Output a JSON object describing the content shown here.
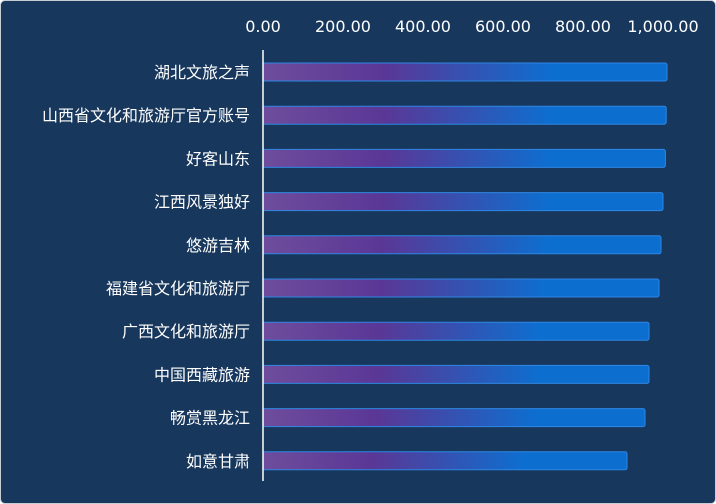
{
  "chart_data": {
    "type": "bar",
    "orientation": "horizontal",
    "title": "",
    "xlabel": "",
    "ylabel": "",
    "x_axis_position": "top",
    "xlim": [
      0,
      1000
    ],
    "x_ticks": [
      "0.00",
      "200.00",
      "400.00",
      "600.00",
      "800.00",
      "1,000.00"
    ],
    "categories": [
      "湖北文旅之声",
      "山西省文化和旅游厅官方账号",
      "好客山东",
      "江西风景独好",
      "悠游吉林",
      "福建省文化和旅游厅",
      "广西文化和旅游厅",
      "中国西藏旅游",
      "畅赏黑龙江",
      "如意甘肃"
    ],
    "values": [
      1010,
      1008,
      1006,
      1000,
      995,
      990,
      965,
      965,
      955,
      910
    ],
    "grid": false,
    "legend": "none",
    "colors": {
      "background": "#17375d",
      "bar_start": "#6e4d9c",
      "bar_mid": "#5a3796",
      "bar_end": "#0c6fd0",
      "bar_outline": "#2f86e3",
      "axis_line": "#ffffff",
      "text": "#ffffff"
    }
  }
}
